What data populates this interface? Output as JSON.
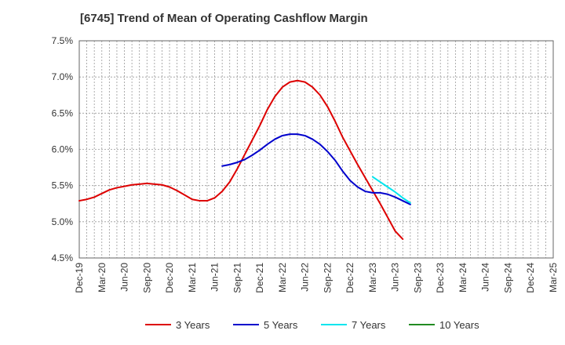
{
  "chart_data": {
    "type": "line",
    "title": "[6745]  Trend of Mean of Operating Cashflow Margin",
    "xlabel": "",
    "ylabel": "",
    "x_tick_labels": [
      "Dec-19",
      "Mar-20",
      "Jun-20",
      "Sep-20",
      "Dec-20",
      "Mar-21",
      "Jun-21",
      "Sep-21",
      "Dec-21",
      "Mar-22",
      "Jun-22",
      "Sep-22",
      "Dec-22",
      "Mar-23",
      "Jun-23",
      "Sep-23",
      "Dec-23",
      "Mar-24",
      "Jun-24",
      "Sep-24",
      "Dec-24",
      "Mar-25"
    ],
    "y_tick_labels": [
      "4.5%",
      "5.0%",
      "5.5%",
      "6.0%",
      "6.5%",
      "7.0%",
      "7.5%"
    ],
    "ylim": [
      4.5,
      7.5
    ],
    "grid": true,
    "legend_position": "bottom",
    "series": [
      {
        "name": "3 Years",
        "color": "#dd0000",
        "points": [
          [
            0,
            5.29
          ],
          [
            1,
            5.31
          ],
          [
            2,
            5.34
          ],
          [
            3,
            5.39
          ],
          [
            4,
            5.44
          ],
          [
            5,
            5.47
          ],
          [
            6,
            5.49
          ],
          [
            7,
            5.51
          ],
          [
            8,
            5.52
          ],
          [
            9,
            5.53
          ],
          [
            10,
            5.52
          ],
          [
            11,
            5.51
          ],
          [
            12,
            5.48
          ],
          [
            13,
            5.43
          ],
          [
            14,
            5.37
          ],
          [
            15,
            5.31
          ],
          [
            16,
            5.29
          ],
          [
            17,
            5.29
          ],
          [
            18,
            5.33
          ],
          [
            19,
            5.42
          ],
          [
            20,
            5.55
          ],
          [
            21,
            5.73
          ],
          [
            22,
            5.93
          ],
          [
            23,
            6.13
          ],
          [
            24,
            6.33
          ],
          [
            25,
            6.55
          ],
          [
            26,
            6.73
          ],
          [
            27,
            6.86
          ],
          [
            28,
            6.93
          ],
          [
            29,
            6.95
          ],
          [
            30,
            6.93
          ],
          [
            31,
            6.86
          ],
          [
            32,
            6.75
          ],
          [
            33,
            6.59
          ],
          [
            34,
            6.39
          ],
          [
            35,
            6.17
          ],
          [
            36,
            5.98
          ],
          [
            37,
            5.79
          ],
          [
            38,
            5.61
          ],
          [
            39,
            5.43
          ],
          [
            40,
            5.25
          ],
          [
            41,
            5.06
          ],
          [
            42,
            4.87
          ],
          [
            43,
            4.76
          ]
        ]
      },
      {
        "name": "5 Years",
        "color": "#0000cc",
        "points": [
          [
            19,
            5.77
          ],
          [
            20,
            5.79
          ],
          [
            21,
            5.82
          ],
          [
            22,
            5.86
          ],
          [
            23,
            5.92
          ],
          [
            24,
            5.99
          ],
          [
            25,
            6.07
          ],
          [
            26,
            6.14
          ],
          [
            27,
            6.19
          ],
          [
            28,
            6.21
          ],
          [
            29,
            6.21
          ],
          [
            30,
            6.19
          ],
          [
            31,
            6.14
          ],
          [
            32,
            6.07
          ],
          [
            33,
            5.97
          ],
          [
            34,
            5.85
          ],
          [
            35,
            5.7
          ],
          [
            36,
            5.57
          ],
          [
            37,
            5.48
          ],
          [
            38,
            5.42
          ],
          [
            39,
            5.4
          ],
          [
            40,
            5.4
          ],
          [
            41,
            5.38
          ],
          [
            42,
            5.34
          ],
          [
            43,
            5.29
          ],
          [
            44,
            5.24
          ]
        ]
      },
      {
        "name": "7 Years",
        "color": "#00e5ee",
        "points": [
          [
            39,
            5.62
          ],
          [
            40,
            5.55
          ],
          [
            41,
            5.48
          ],
          [
            42,
            5.41
          ],
          [
            43,
            5.33
          ],
          [
            44,
            5.26
          ]
        ]
      },
      {
        "name": "10 Years",
        "color": "#228b22",
        "points": []
      }
    ]
  }
}
